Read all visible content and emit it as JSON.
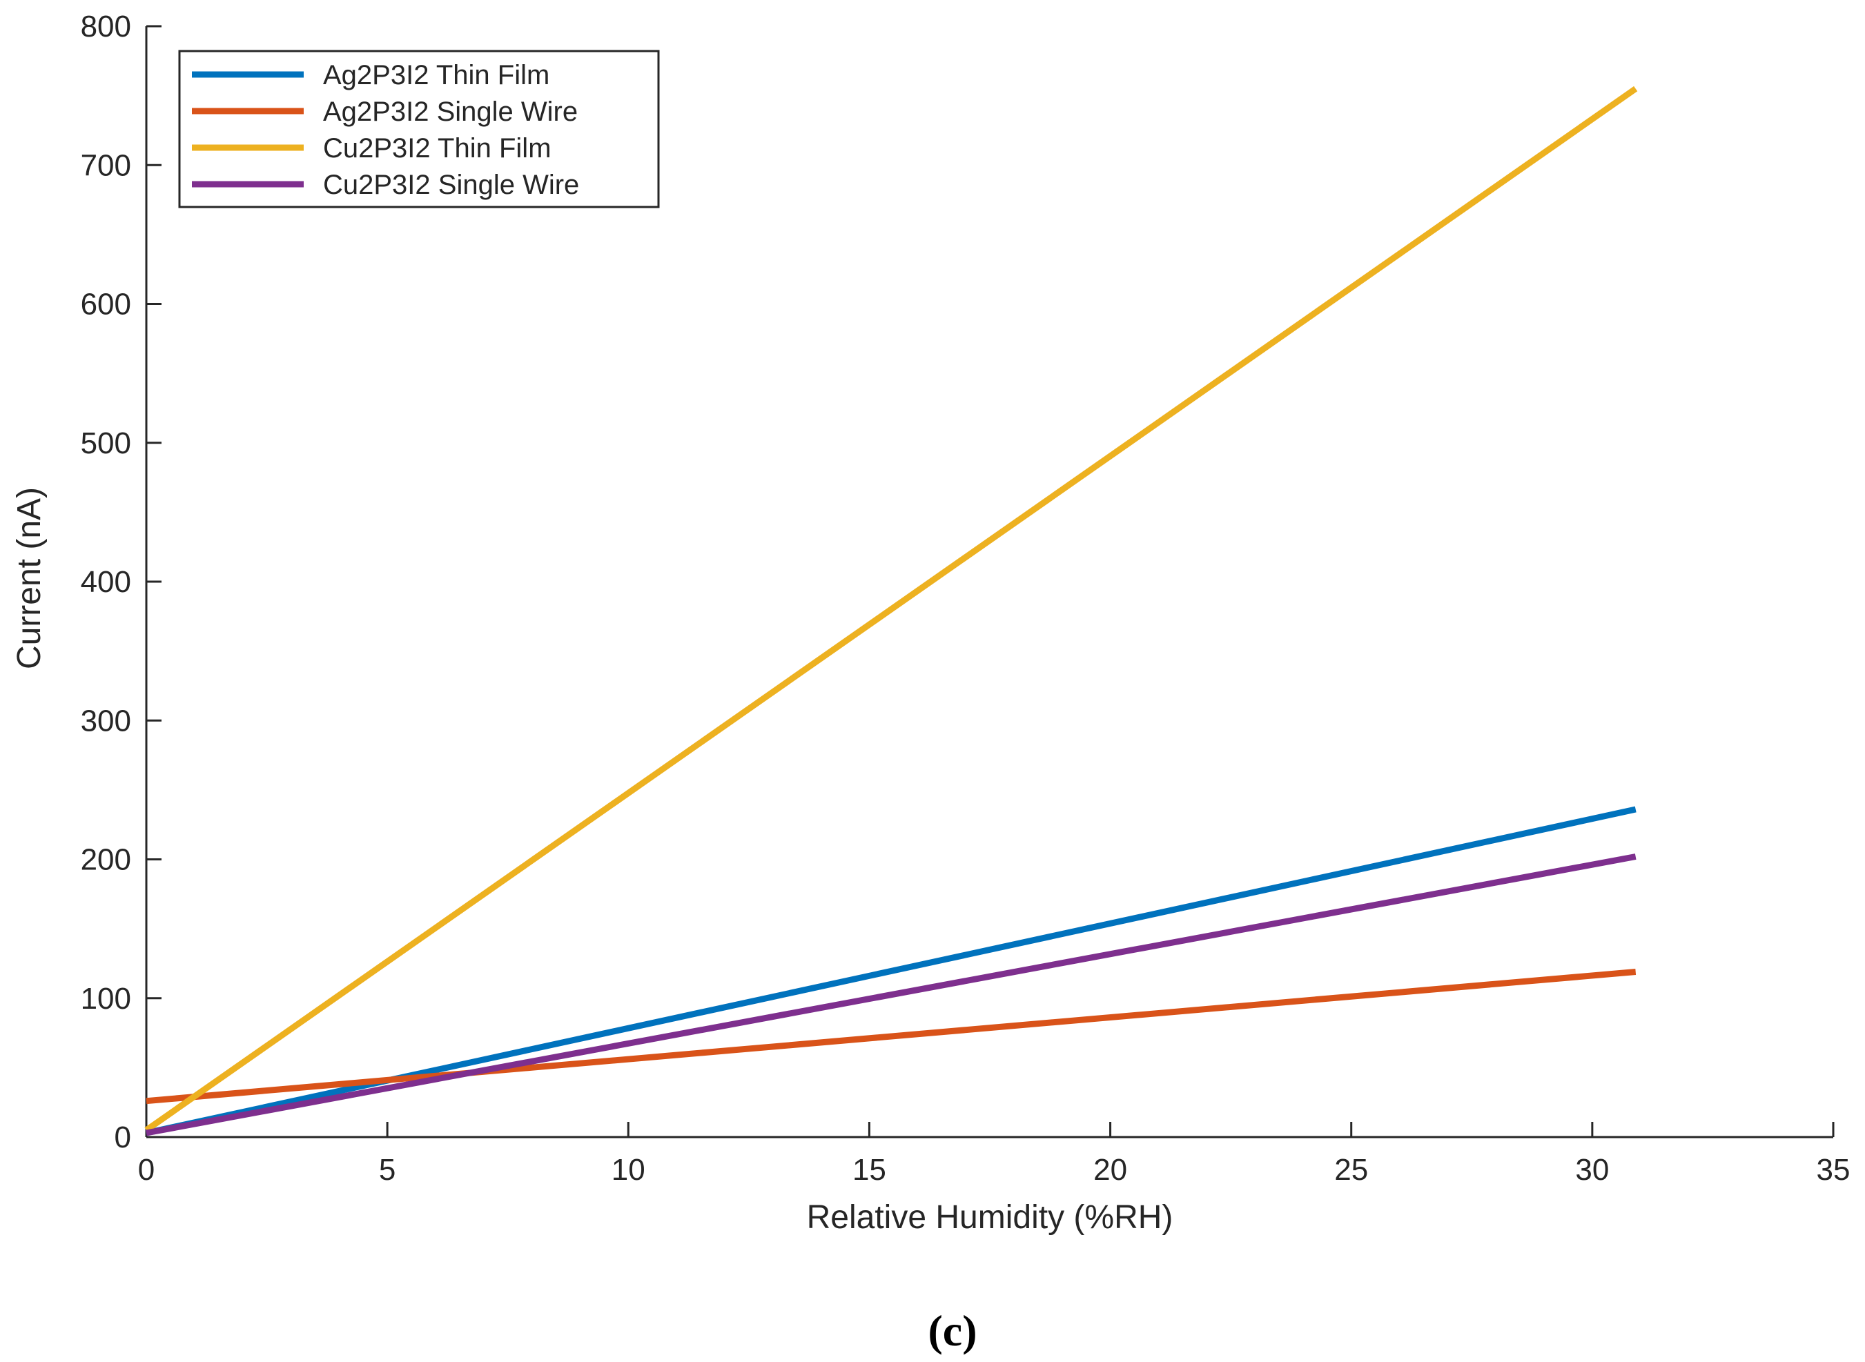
{
  "chart_data": {
    "type": "line",
    "title": "",
    "xlabel": "Relative Humidity (%RH)",
    "ylabel": "Current (nA)",
    "xlim": [
      0,
      35
    ],
    "ylim": [
      0,
      800
    ],
    "xticks": [
      0,
      5,
      10,
      15,
      20,
      25,
      30,
      35
    ],
    "yticks": [
      0,
      100,
      200,
      300,
      400,
      500,
      600,
      700,
      800
    ],
    "grid": false,
    "legend_position": "top-left",
    "series": [
      {
        "name": "Ag2P3I2 Thin Film",
        "color": "#0072BD",
        "x": [
          0,
          30.9
        ],
        "y": [
          3,
          236
        ]
      },
      {
        "name": "Ag2P3I2 Single Wire",
        "color": "#D95319",
        "x": [
          0,
          30.9
        ],
        "y": [
          26,
          119
        ]
      },
      {
        "name": "Cu2P3I2 Thin Film",
        "color": "#EDB120",
        "x": [
          0,
          30.9
        ],
        "y": [
          5,
          755
        ]
      },
      {
        "name": "Cu2P3I2 Single Wire",
        "color": "#7E2F8E",
        "x": [
          0,
          30.9
        ],
        "y": [
          3,
          202
        ]
      }
    ]
  },
  "caption": "(c)"
}
